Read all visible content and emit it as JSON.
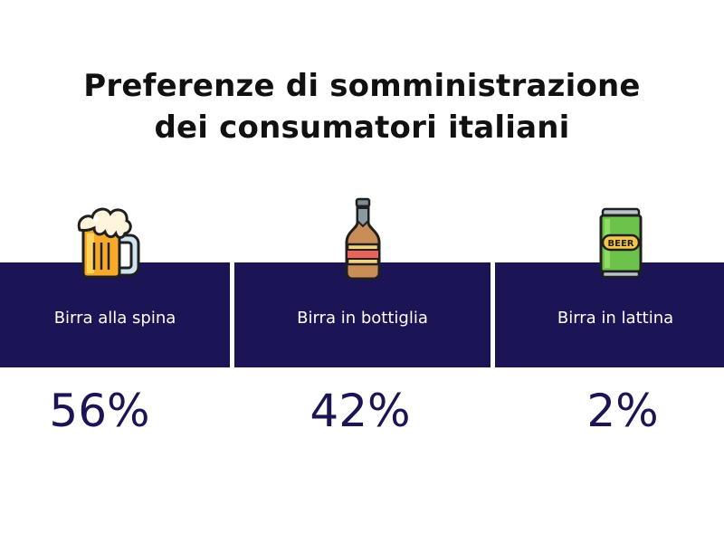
{
  "title": {
    "line1": "Preferenze di somministrazione",
    "line2": "dei consumatori italiani"
  },
  "chart_data": {
    "type": "table",
    "title": "Preferenze di somministrazione dei consumatori italiani",
    "categories": [
      "Birra alla spina",
      "Birra in bottiglia",
      "Birra in lattina"
    ],
    "values": [
      56,
      42,
      2
    ],
    "value_labels": [
      "56%",
      "42%",
      "2%"
    ],
    "unit": "%",
    "icons": [
      "beer-mug-icon",
      "beer-bottle-icon",
      "beer-can-icon"
    ]
  },
  "colors": {
    "band": "#1b1455",
    "value_text": "#1b1455",
    "title_text": "#111111"
  },
  "icons": {
    "can_text": "BEER"
  }
}
